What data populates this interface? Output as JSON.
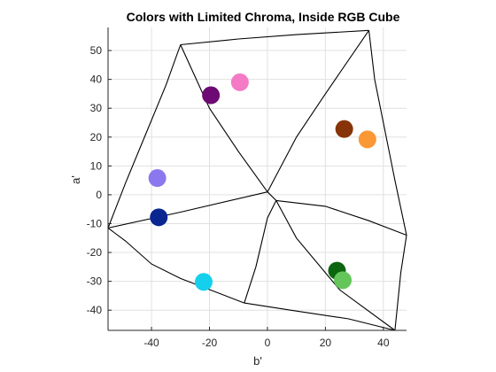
{
  "chart_data": {
    "type": "scatter",
    "title": "Colors with Limited Chroma, Inside RGB Cube",
    "xlabel": "b'",
    "ylabel": "a'",
    "xlim": [
      -55,
      48
    ],
    "ylim": [
      -47,
      58
    ],
    "xticks": [
      -40,
      -20,
      0,
      20,
      40
    ],
    "yticks": [
      -40,
      -30,
      -20,
      -10,
      0,
      10,
      20,
      30,
      40,
      50
    ],
    "grid": true,
    "points": [
      {
        "x": -19.5,
        "y": 34.5,
        "color": "#6e0a74"
      },
      {
        "x": -9.5,
        "y": 39.0,
        "color": "#f47ac6"
      },
      {
        "x": 26.5,
        "y": 22.8,
        "color": "#863408"
      },
      {
        "x": 34.5,
        "y": 19.2,
        "color": "#fa9836"
      },
      {
        "x": -38.0,
        "y": 5.8,
        "color": "#8b78ee"
      },
      {
        "x": -37.5,
        "y": -7.8,
        "color": "#0a2690"
      },
      {
        "x": -22.0,
        "y": -30.2,
        "color": "#15d0ec"
      },
      {
        "x": 24.0,
        "y": -26.3,
        "color": "#0c6610"
      },
      {
        "x": 26.0,
        "y": -29.6,
        "color": "#64c65a"
      }
    ],
    "boundary_lines": [
      [
        [
          -55,
          -11.5
        ],
        [
          -49,
          4
        ],
        [
          -42,
          21
        ],
        [
          -35,
          38
        ],
        [
          -30,
          52
        ]
      ],
      [
        [
          -30,
          52
        ],
        [
          -10,
          54
        ],
        [
          10,
          55.5
        ],
        [
          35,
          57
        ]
      ],
      [
        [
          35,
          57
        ],
        [
          37,
          40
        ],
        [
          41,
          20
        ],
        [
          44,
          5
        ],
        [
          48,
          -14
        ]
      ],
      [
        [
          48,
          -14
        ],
        [
          46,
          -27
        ],
        [
          44,
          -47
        ]
      ],
      [
        [
          44,
          -47
        ],
        [
          28,
          -43
        ],
        [
          8,
          -40
        ],
        [
          -8,
          -37.5
        ]
      ],
      [
        [
          -8,
          -37.5
        ],
        [
          -30,
          -29
        ],
        [
          -40,
          -24
        ],
        [
          -49,
          -16
        ],
        [
          -55,
          -11.5
        ]
      ],
      [
        [
          -30,
          52
        ],
        [
          -20,
          30
        ],
        [
          -10,
          15
        ],
        [
          0,
          1
        ]
      ],
      [
        [
          35,
          57
        ],
        [
          20,
          35
        ],
        [
          10,
          20
        ],
        [
          0,
          1
        ]
      ],
      [
        [
          0,
          1
        ],
        [
          -30,
          -6
        ],
        [
          -55,
          -11.5
        ]
      ],
      [
        [
          0,
          1
        ],
        [
          3,
          -2
        ]
      ],
      [
        [
          3,
          -2
        ],
        [
          20,
          -4
        ],
        [
          35,
          -9
        ],
        [
          48,
          -14
        ]
      ],
      [
        [
          3,
          -2
        ],
        [
          10,
          -15
        ],
        [
          25,
          -33
        ],
        [
          44,
          -47
        ]
      ],
      [
        [
          3,
          -2
        ],
        [
          0,
          -8
        ],
        [
          -4,
          -25
        ],
        [
          -8,
          -37.5
        ]
      ]
    ]
  }
}
